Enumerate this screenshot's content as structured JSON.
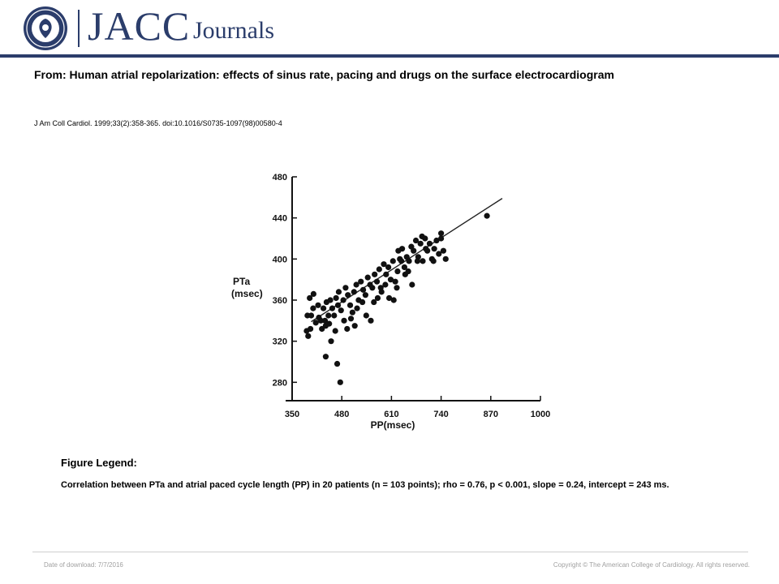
{
  "header": {
    "brand_main": "JACC",
    "brand_sub": "Journals",
    "brand_color": "#2b3d6b"
  },
  "article": {
    "title": "From: Human atrial repolarization: effects of sinus rate, pacing and drugs on the surface electrocardiogram",
    "citation": "J Am Coll Cardiol. 1999;33(2):358-365. doi:10.1016/S0735-1097(98)00580-4"
  },
  "legend": {
    "heading": "Figure Legend:",
    "text": "Correlation between PTa and atrial paced cycle length (PP) in 20 patients (n = 103 points); rho = 0.76, p < 0.001, slope = 0.24, intercept = 243 ms."
  },
  "footer": {
    "date": "Date of download:  7/7/2016",
    "copyright": "Copyright © The American College of Cardiology. All rights reserved."
  },
  "chart_data": {
    "type": "scatter",
    "xlabel": "PP(msec)",
    "ylabel": [
      "PTa",
      "(msec)"
    ],
    "xlim": [
      350,
      1000
    ],
    "ylim": [
      270,
      480
    ],
    "xticks": [
      350,
      480,
      610,
      740,
      870,
      1000
    ],
    "yticks": [
      280,
      320,
      360,
      400,
      440,
      480
    ],
    "grid": false,
    "fit_line": {
      "slope": 0.24,
      "intercept": 243,
      "x_range": [
        400,
        900
      ]
    },
    "points": [
      [
        420,
        343
      ],
      [
        390,
        345
      ],
      [
        400,
        345
      ],
      [
        405,
        352
      ],
      [
        398,
        332
      ],
      [
        392,
        325
      ],
      [
        388,
        330
      ],
      [
        412,
        338
      ],
      [
        418,
        355
      ],
      [
        425,
        340
      ],
      [
        432,
        352
      ],
      [
        440,
        358
      ],
      [
        445,
        345
      ],
      [
        438,
        335
      ],
      [
        450,
        360
      ],
      [
        455,
        352
      ],
      [
        460,
        345
      ],
      [
        465,
        362
      ],
      [
        470,
        355
      ],
      [
        478,
        350
      ],
      [
        484,
        360
      ],
      [
        490,
        372
      ],
      [
        496,
        365
      ],
      [
        502,
        355
      ],
      [
        508,
        348
      ],
      [
        512,
        368
      ],
      [
        518,
        375
      ],
      [
        524,
        360
      ],
      [
        530,
        378
      ],
      [
        536,
        370
      ],
      [
        542,
        365
      ],
      [
        548,
        382
      ],
      [
        554,
        375
      ],
      [
        560,
        372
      ],
      [
        566,
        385
      ],
      [
        572,
        378
      ],
      [
        578,
        390
      ],
      [
        584,
        368
      ],
      [
        590,
        395
      ],
      [
        596,
        385
      ],
      [
        602,
        392
      ],
      [
        608,
        380
      ],
      [
        614,
        398
      ],
      [
        620,
        378
      ],
      [
        626,
        388
      ],
      [
        632,
        400
      ],
      [
        638,
        410
      ],
      [
        644,
        392
      ],
      [
        650,
        402
      ],
      [
        656,
        398
      ],
      [
        662,
        412
      ],
      [
        668,
        408
      ],
      [
        674,
        418
      ],
      [
        680,
        402
      ],
      [
        686,
        415
      ],
      [
        692,
        398
      ],
      [
        698,
        420
      ],
      [
        704,
        408
      ],
      [
        710,
        415
      ],
      [
        716,
        400
      ],
      [
        722,
        410
      ],
      [
        728,
        418
      ],
      [
        734,
        405
      ],
      [
        740,
        425
      ],
      [
        746,
        408
      ],
      [
        752,
        400
      ],
      [
        396,
        362
      ],
      [
        406,
        366
      ],
      [
        428,
        332
      ],
      [
        436,
        340
      ],
      [
        447,
        337
      ],
      [
        463,
        330
      ],
      [
        472,
        368
      ],
      [
        486,
        340
      ],
      [
        494,
        332
      ],
      [
        504,
        342
      ],
      [
        514,
        335
      ],
      [
        520,
        352
      ],
      [
        534,
        358
      ],
      [
        544,
        345
      ],
      [
        556,
        340
      ],
      [
        564,
        358
      ],
      [
        574,
        362
      ],
      [
        582,
        372
      ],
      [
        594,
        375
      ],
      [
        604,
        362
      ],
      [
        616,
        360
      ],
      [
        624,
        372
      ],
      [
        628,
        408
      ],
      [
        636,
        398
      ],
      [
        646,
        385
      ],
      [
        654,
        388
      ],
      [
        664,
        375
      ],
      [
        678,
        398
      ],
      [
        690,
        422
      ],
      [
        700,
        410
      ],
      [
        720,
        398
      ],
      [
        740,
        420
      ],
      [
        860,
        442
      ],
      [
        438,
        305
      ],
      [
        468,
        298
      ],
      [
        476,
        280
      ],
      [
        452,
        320
      ]
    ]
  }
}
